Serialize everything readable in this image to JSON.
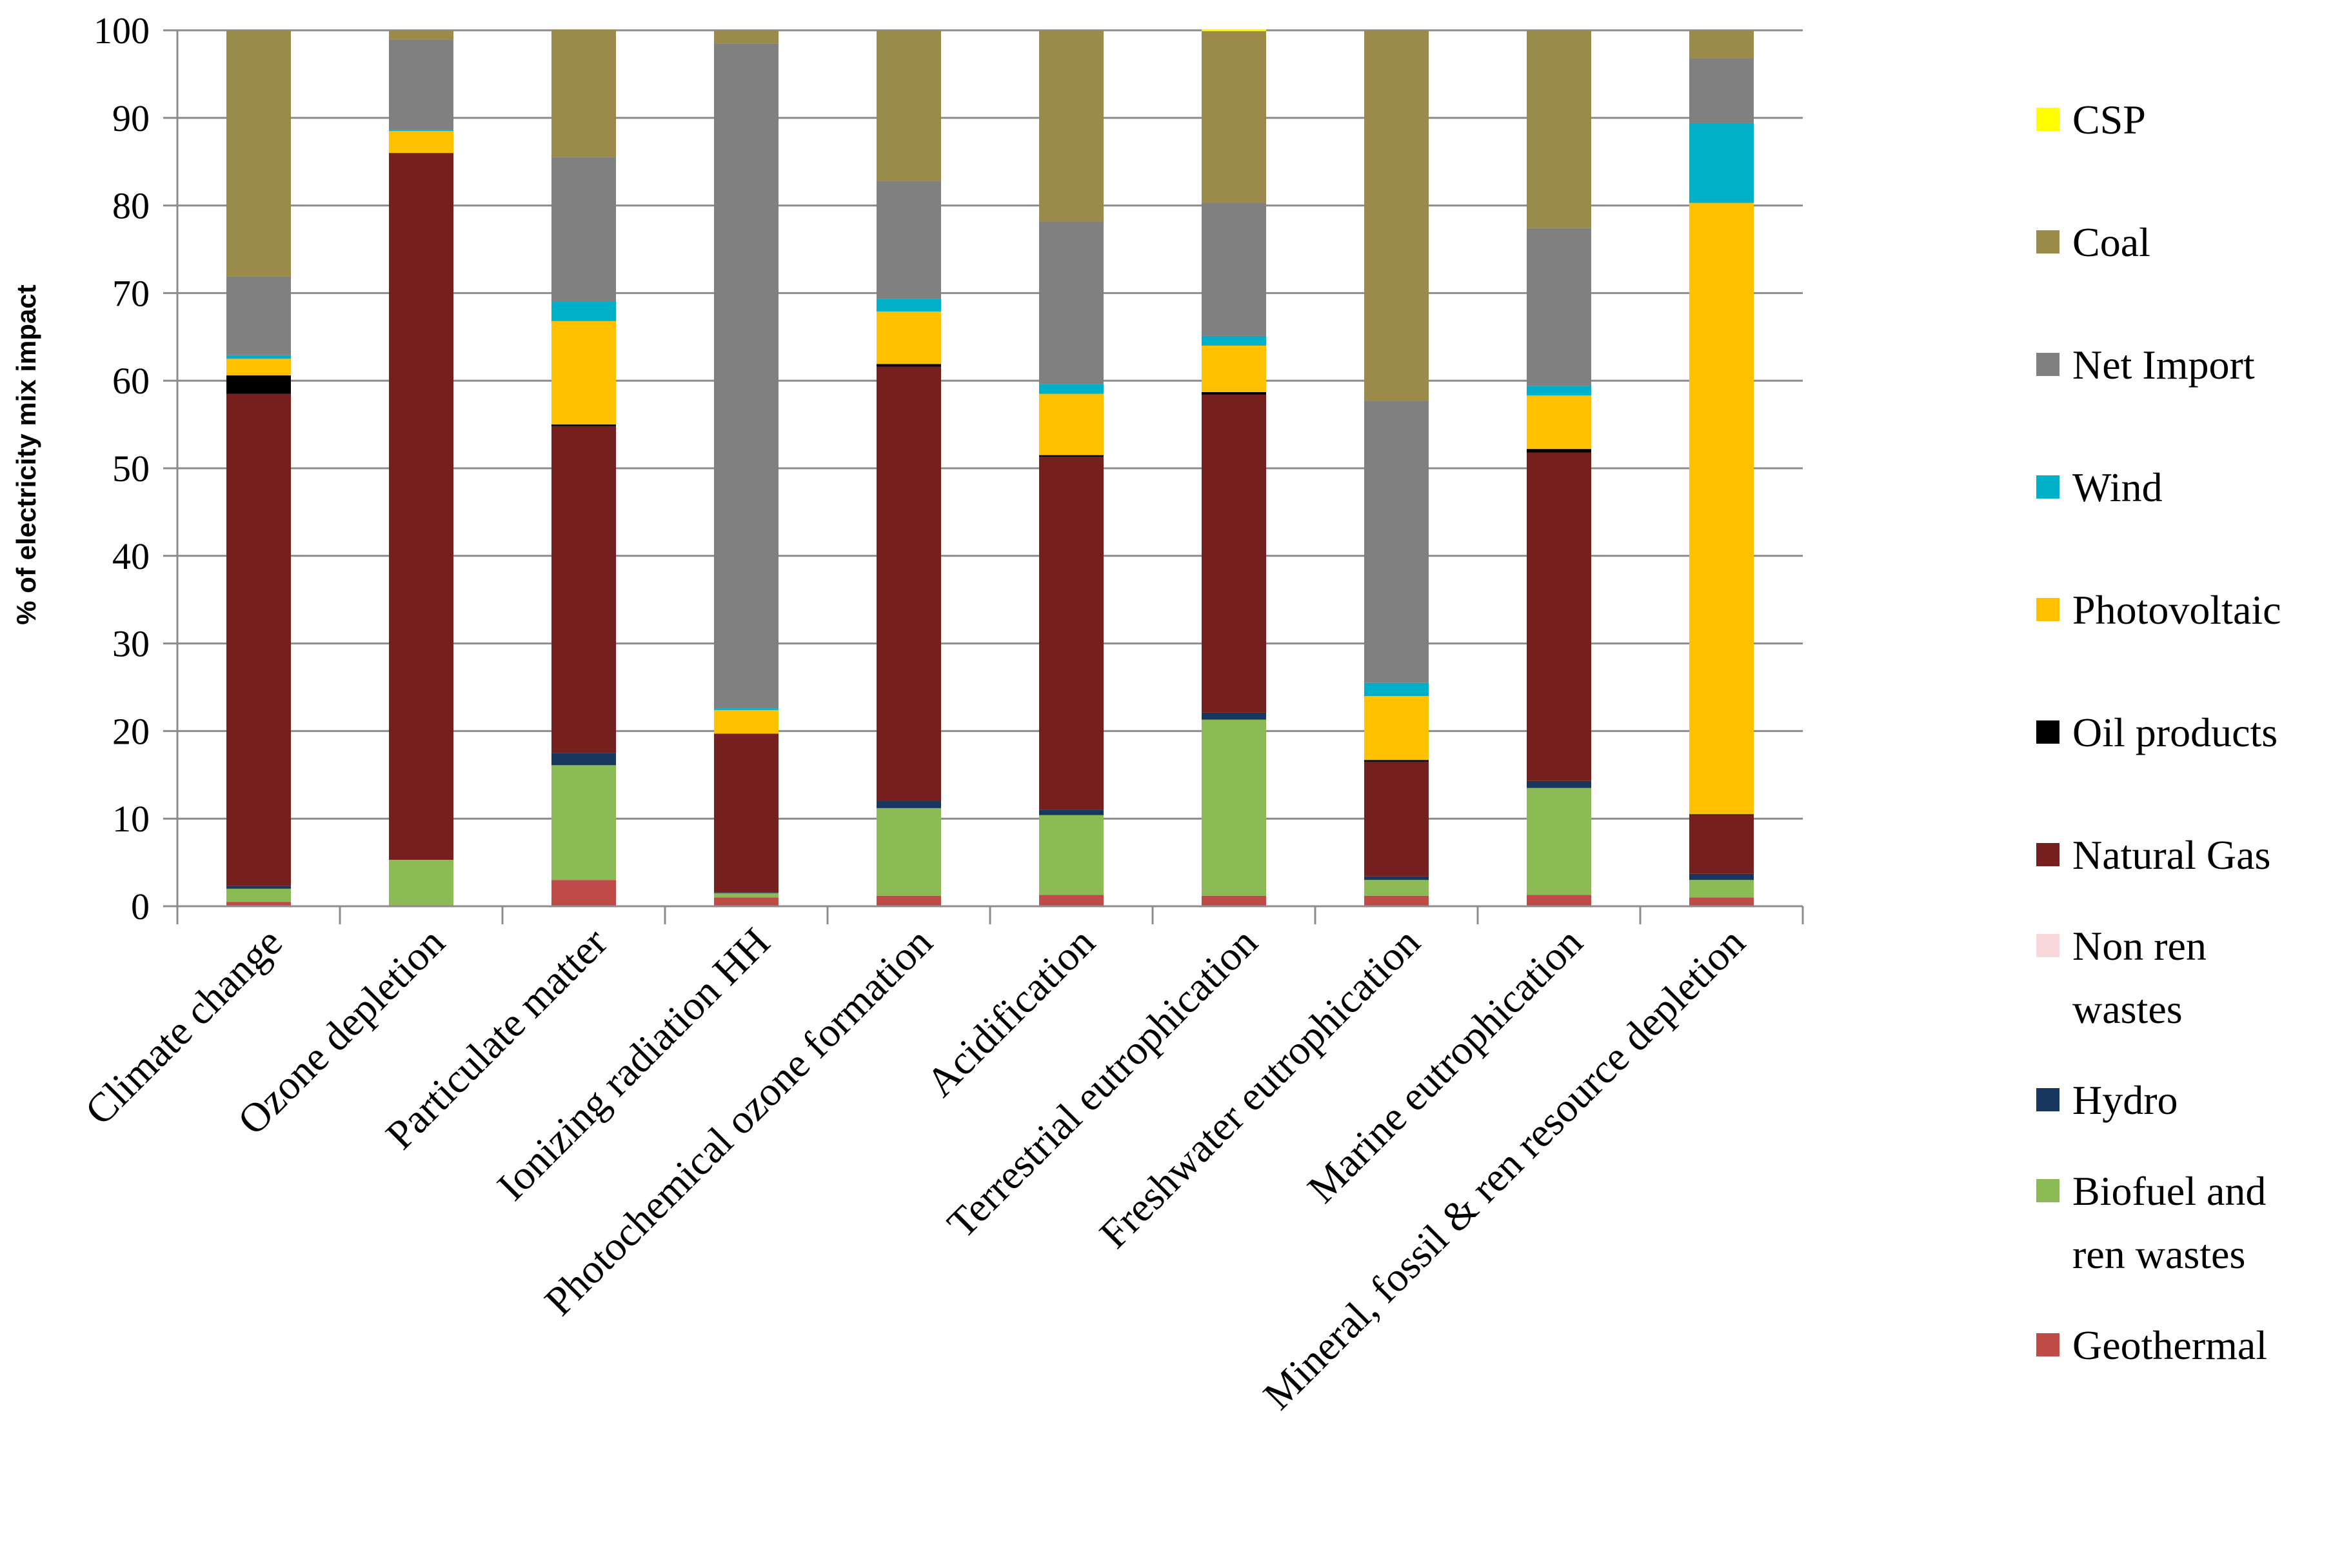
{
  "chart_data": {
    "type": "bar",
    "stacked": true,
    "title": "",
    "xlabel": "",
    "ylabel": "% of electricity mix impact",
    "ylim": [
      0,
      100
    ],
    "yticks": [
      0,
      10,
      20,
      30,
      40,
      50,
      60,
      70,
      80,
      90,
      100
    ],
    "grid": true,
    "legend_position": "right",
    "categories": [
      "Climate change",
      "Ozone depletion",
      "Particulate matter",
      "Ionizing radiation HH",
      "Photochemical ozone formation",
      "Acidification",
      "Terrestrial eutrophication",
      "Freshwater eutrophication",
      "Marine eutrophication",
      "Mineral, fossil & ren resource depletion"
    ],
    "series": [
      {
        "name": "Geothermal",
        "color": "#be4b48",
        "values": [
          0.5,
          0.1,
          3.0,
          1.0,
          1.2,
          1.3,
          1.2,
          1.2,
          1.3,
          1.0
        ]
      },
      {
        "name": "Biofuel and ren wastes",
        "color": "#8cbb55",
        "values": [
          1.5,
          5.2,
          13.1,
          0.5,
          10.0,
          9.1,
          20.1,
          1.8,
          12.2,
          2.0
        ]
      },
      {
        "name": "Hydro",
        "color": "#17375e",
        "values": [
          0.3,
          0.0,
          1.4,
          0.1,
          0.8,
          0.6,
          0.8,
          0.4,
          0.8,
          0.7
        ]
      },
      {
        "name": "Non ren wastes",
        "color": "#f9d8dc",
        "values": [
          0.0,
          0.0,
          0.0,
          0.0,
          0.0,
          0.0,
          0.0,
          0.0,
          0.0,
          0.0
        ]
      },
      {
        "name": "Natural Gas",
        "color": "#75201f",
        "values": [
          56.2,
          80.7,
          37.3,
          18.1,
          49.6,
          40.3,
          36.3,
          13.1,
          37.5,
          6.7
        ]
      },
      {
        "name": "Oil products",
        "color": "#000000",
        "values": [
          2.1,
          0.0,
          0.2,
          0.0,
          0.3,
          0.2,
          0.3,
          0.2,
          0.4,
          0.1
        ]
      },
      {
        "name": "Photovoltaic",
        "color": "#ffc000",
        "values": [
          1.9,
          2.5,
          11.8,
          2.7,
          6.0,
          7.0,
          5.3,
          7.3,
          6.1,
          69.8
        ]
      },
      {
        "name": "Wind",
        "color": "#00b0c8",
        "values": [
          0.4,
          0.1,
          2.2,
          0.2,
          1.4,
          1.1,
          1.1,
          1.5,
          1.1,
          9.1
        ]
      },
      {
        "name": "Net Import",
        "color": "#808080",
        "values": [
          9.0,
          10.3,
          16.5,
          75.9,
          13.5,
          18.6,
          15.2,
          32.2,
          18.0,
          7.4
        ]
      },
      {
        "name": "Coal",
        "color": "#9a8b4a",
        "values": [
          28.1,
          1.1,
          14.6,
          1.5,
          17.2,
          21.8,
          19.6,
          42.3,
          22.6,
          3.2
        ]
      },
      {
        "name": "CSP",
        "color": "#ffff00",
        "values": [
          0.0,
          0.0,
          0.0,
          0.0,
          0.0,
          0.0,
          0.2,
          0.0,
          0.0,
          0.0
        ]
      }
    ],
    "legend_order": [
      "CSP",
      "Coal",
      "Net Import",
      "Wind",
      "Photovoltaic",
      "Oil products",
      "Natural Gas",
      "Non ren wastes",
      "Hydro",
      "Biofuel and ren wastes",
      "Geothermal"
    ]
  }
}
